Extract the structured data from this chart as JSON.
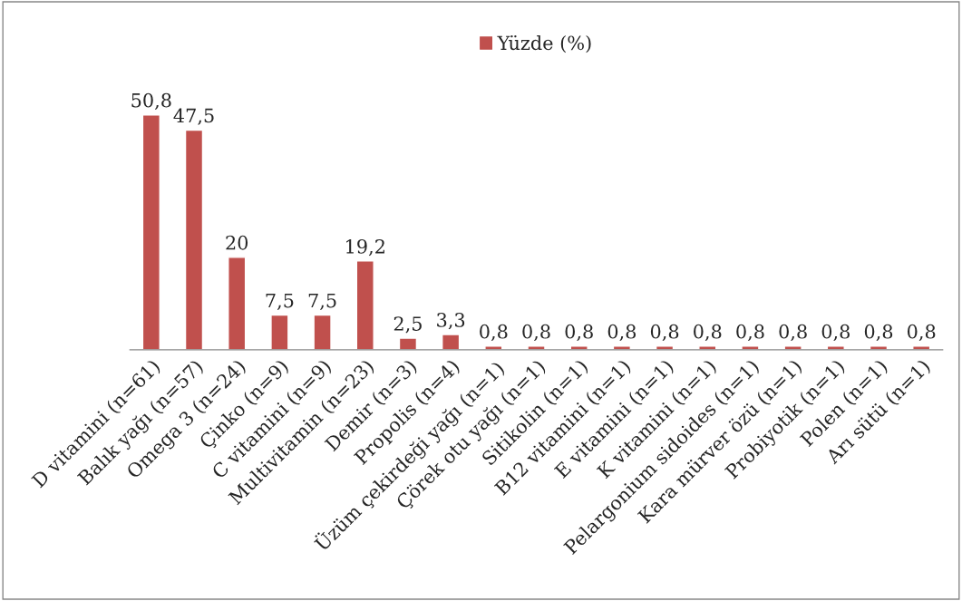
{
  "chart_data": {
    "type": "bar",
    "categories": [
      "D vitamini (n=61)",
      "Balık yağı (n=57)",
      "Omega 3 (n=24)",
      "Çinko (n=9)",
      "C vitamini (n=9)",
      "Multivitamin (n=23)",
      "Demir (n=3)",
      "Propolis (n=4)",
      "Üzüm çekirdeği yağı (n=1)",
      "Çörek otu yağı (n=1)",
      "Sitikolin (n=1)",
      "B12 vitamini (n=1)",
      "E vitamini (n=1)",
      "K vitamini (n=1)",
      "Pelargonium sidoides (n=1)",
      "Kara mürver özü (n=1)",
      "Probiyotik (n=1)",
      "Polen (n=1)",
      "Arı sütü (n=1)"
    ],
    "series": [
      {
        "name": "Yüzde (%)",
        "color": "#c0504d",
        "values": [
          50.8,
          47.5,
          20,
          7.5,
          7.5,
          19.2,
          2.5,
          3.3,
          0.8,
          0.8,
          0.8,
          0.8,
          0.8,
          0.8,
          0.8,
          0.8,
          0.8,
          0.8,
          0.8
        ],
        "value_labels": [
          "50,8",
          "47,5",
          "20",
          "7,5",
          "7,5",
          "19,2",
          "2,5",
          "3,3",
          "0,8",
          "0,8",
          "0,8",
          "0,8",
          "0,8",
          "0,8",
          "0,8",
          "0,8",
          "0,8",
          "0,8",
          "0,8"
        ]
      }
    ],
    "legend": "top"
  }
}
